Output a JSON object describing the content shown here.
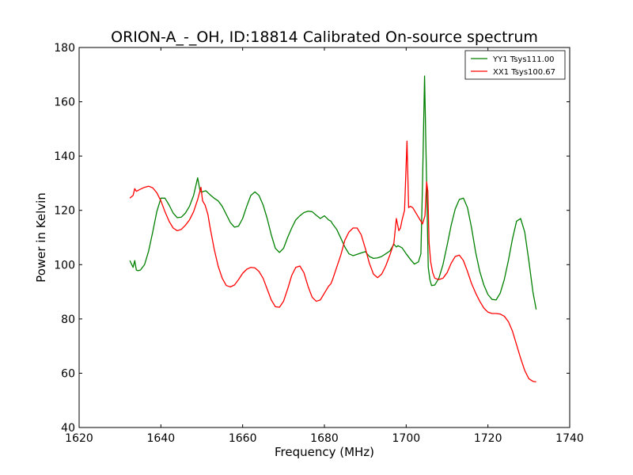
{
  "chart_data": {
    "type": "line",
    "title": "ORION-A_-_OH, ID:18814 Calibrated On-source spectrum",
    "xlabel": "Frequency (MHz)",
    "ylabel": "Power in Kelvin",
    "xlim": [
      1620,
      1740
    ],
    "ylim": [
      40,
      180
    ],
    "xticks": [
      1620,
      1640,
      1660,
      1680,
      1700,
      1720,
      1740
    ],
    "yticks": [
      40,
      60,
      80,
      100,
      120,
      140,
      160,
      180
    ],
    "grid": false,
    "legend_position": "top-right",
    "series": [
      {
        "name": "YY1 Tsys111.00",
        "color": "#008000",
        "x": [
          1632.4,
          1633.2,
          1633.6,
          1634.0,
          1634.4,
          1635.0,
          1636.0,
          1637.0,
          1638.0,
          1639.0,
          1640.0,
          1641.0,
          1642.0,
          1643.0,
          1644.0,
          1645.0,
          1646.0,
          1647.0,
          1648.0,
          1649.0,
          1649.6,
          1650.0,
          1650.4,
          1651.0,
          1652.0,
          1653.0,
          1654.0,
          1655.0,
          1656.0,
          1657.0,
          1658.0,
          1659.0,
          1660.0,
          1661.0,
          1662.0,
          1663.0,
          1664.0,
          1665.0,
          1666.0,
          1667.0,
          1668.0,
          1669.0,
          1670.0,
          1671.0,
          1672.0,
          1673.0,
          1674.0,
          1675.0,
          1676.0,
          1677.0,
          1678.0,
          1679.0,
          1680.0,
          1681.0,
          1681.6,
          1682.0,
          1683.0,
          1684.0,
          1685.0,
          1686.0,
          1687.0,
          1688.0,
          1689.0,
          1690.0,
          1691.0,
          1692.0,
          1693.0,
          1694.0,
          1695.0,
          1696.0,
          1697.0,
          1697.6,
          1698.0,
          1699.0,
          1700.0,
          1701.0,
          1702.0,
          1703.0,
          1703.6,
          1704.0,
          1704.5,
          1705.0,
          1705.4,
          1705.8,
          1706.2,
          1707.0,
          1708.0,
          1709.0,
          1710.0,
          1711.0,
          1712.0,
          1713.0,
          1714.0,
          1715.0,
          1716.0,
          1717.0,
          1718.0,
          1719.0,
          1720.0,
          1721.0,
          1722.0,
          1723.0,
          1724.0,
          1725.0,
          1726.0,
          1727.0,
          1728.0,
          1729.0,
          1730.0,
          1731.0,
          1731.8
        ],
        "y": [
          101.5,
          99.0,
          101.5,
          98.0,
          97.8,
          98.0,
          100.0,
          105.0,
          112.0,
          119.5,
          124.5,
          124.5,
          122.0,
          119.0,
          117.3,
          117.5,
          119.0,
          121.5,
          125.5,
          132.0,
          127.0,
          126.7,
          127.0,
          127.2,
          125.8,
          124.5,
          123.5,
          121.5,
          118.5,
          115.5,
          113.8,
          114.2,
          117.0,
          121.5,
          125.5,
          126.8,
          125.5,
          122.0,
          117.0,
          111.0,
          106.0,
          104.5,
          106.0,
          110.0,
          113.5,
          116.5,
          118.0,
          119.2,
          119.7,
          119.5,
          118.2,
          117.0,
          118.0,
          116.5,
          116.0,
          115.0,
          113.0,
          109.8,
          106.5,
          104.0,
          103.3,
          103.8,
          104.3,
          104.8,
          103.0,
          102.3,
          102.5,
          103.0,
          104.0,
          105.0,
          107.5,
          106.5,
          107.0,
          106.2,
          104.0,
          102.0,
          100.2,
          101.0,
          104.0,
          130.0,
          169.5,
          130.0,
          99.0,
          94.5,
          92.3,
          92.5,
          95.0,
          100.0,
          107.0,
          114.5,
          120.5,
          124.0,
          124.5,
          121.0,
          113.5,
          104.5,
          97.5,
          92.5,
          89.0,
          87.2,
          87.0,
          89.5,
          94.5,
          101.5,
          109.5,
          116.0,
          117.0,
          112.0,
          101.5,
          90.0,
          83.5
        ]
      },
      {
        "name": "XX1 Tsys100.67",
        "color": "#ff0000",
        "x": [
          1632.4,
          1633.2,
          1633.6,
          1634.0,
          1635.0,
          1636.0,
          1637.0,
          1638.0,
          1639.0,
          1640.0,
          1641.0,
          1642.0,
          1643.0,
          1644.0,
          1645.0,
          1646.0,
          1647.0,
          1648.0,
          1649.0,
          1649.8,
          1650.2,
          1650.8,
          1651.5,
          1652.0,
          1653.0,
          1654.0,
          1655.0,
          1656.0,
          1657.0,
          1658.0,
          1659.0,
          1660.0,
          1661.0,
          1662.0,
          1663.0,
          1664.0,
          1665.0,
          1666.0,
          1667.0,
          1668.0,
          1669.0,
          1670.0,
          1671.0,
          1672.0,
          1673.0,
          1674.0,
          1675.0,
          1676.0,
          1677.0,
          1678.0,
          1679.0,
          1680.0,
          1681.0,
          1681.6,
          1682.0,
          1683.0,
          1684.0,
          1685.0,
          1686.0,
          1687.0,
          1688.0,
          1689.0,
          1690.0,
          1691.0,
          1692.0,
          1693.0,
          1694.0,
          1695.0,
          1696.0,
          1697.0,
          1697.6,
          1698.2,
          1698.6,
          1699.0,
          1699.6,
          1700.2,
          1700.6,
          1701.0,
          1701.6,
          1702.0,
          1703.0,
          1704.0,
          1704.6,
          1705.0,
          1705.3,
          1705.6,
          1706.0,
          1706.5,
          1707.0,
          1708.0,
          1709.0,
          1710.0,
          1711.0,
          1712.0,
          1713.0,
          1714.0,
          1715.0,
          1716.0,
          1717.0,
          1718.0,
          1719.0,
          1720.0,
          1721.0,
          1722.0,
          1723.0,
          1724.0,
          1725.0,
          1726.0,
          1727.0,
          1728.0,
          1729.0,
          1730.0,
          1731.0,
          1731.8
        ],
        "y": [
          124.5,
          125.5,
          128.0,
          127.0,
          127.8,
          128.5,
          128.9,
          128.3,
          126.5,
          123.5,
          119.5,
          116.0,
          113.5,
          112.5,
          113.0,
          114.5,
          116.5,
          119.5,
          124.0,
          128.5,
          123.5,
          122.0,
          118.5,
          114.0,
          106.0,
          99.5,
          95.0,
          92.3,
          91.8,
          92.5,
          94.5,
          96.8,
          98.3,
          99.0,
          98.8,
          97.5,
          95.0,
          91.0,
          87.0,
          84.5,
          84.3,
          86.5,
          91.0,
          96.0,
          99.0,
          99.5,
          97.0,
          92.0,
          88.0,
          86.5,
          87.0,
          89.5,
          92.0,
          93.0,
          94.5,
          99.0,
          103.5,
          109.0,
          112.0,
          113.5,
          113.5,
          111.0,
          106.0,
          100.5,
          96.5,
          95.2,
          96.5,
          99.5,
          103.5,
          108.0,
          117.0,
          112.5,
          113.5,
          116.5,
          120.0,
          145.5,
          121.0,
          121.5,
          121.0,
          120.0,
          117.5,
          115.0,
          118.0,
          130.5,
          127.0,
          108.0,
          101.0,
          97.0,
          95.0,
          94.5,
          95.0,
          97.0,
          100.5,
          103.0,
          103.5,
          101.5,
          97.5,
          93.0,
          89.5,
          86.5,
          84.0,
          82.5,
          82.0,
          82.0,
          81.8,
          81.0,
          79.0,
          75.5,
          70.5,
          65.5,
          61.0,
          58.0,
          57.0,
          56.8
        ]
      }
    ]
  }
}
